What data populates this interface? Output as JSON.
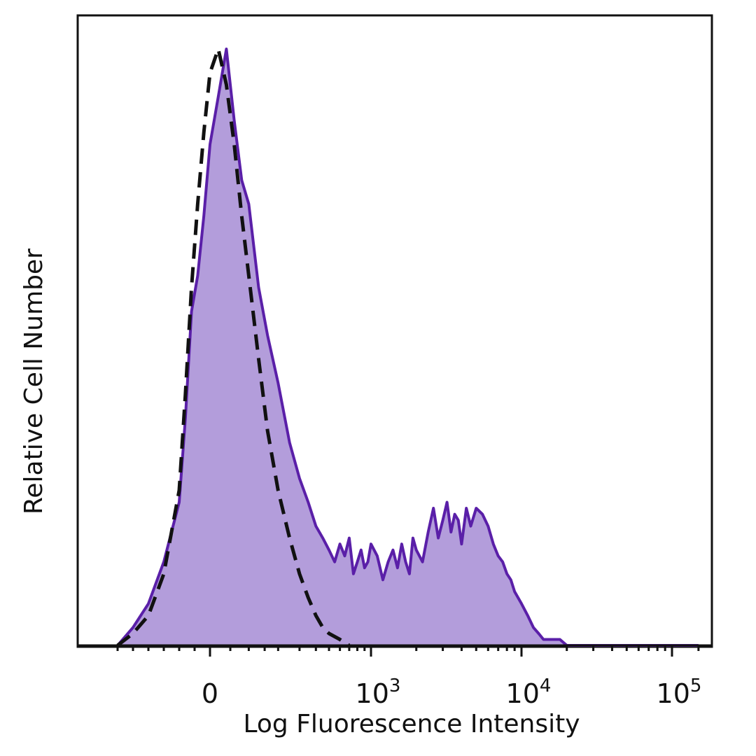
{
  "chart_data": {
    "type": "area",
    "title": "",
    "xlabel": "Log Fluorescence Intensity",
    "ylabel": "Relative Cell Number",
    "x_scale": "biexponential (log)",
    "x_ticks": [
      {
        "value": 0,
        "base": "0",
        "exp": ""
      },
      {
        "value": 1000,
        "base": "10",
        "exp": "3"
      },
      {
        "value": 10000,
        "base": "10",
        "exp": "4"
      },
      {
        "value": 100000,
        "base": "10",
        "exp": "5"
      }
    ],
    "grid": false,
    "legend": "none",
    "series": [
      {
        "style": "filled",
        "color": "#5a1fa8",
        "fill": "#b39ddb",
        "x": [
          -300,
          -250,
          -200,
          -150,
          -100,
          -80,
          -60,
          -40,
          -20,
          0,
          20,
          40,
          60,
          80,
          100,
          130,
          160,
          200,
          250,
          300,
          350,
          400,
          450,
          500,
          550,
          600,
          650,
          700,
          750,
          800,
          850,
          900,
          950,
          1000,
          1100,
          1200,
          1300,
          1400,
          1500,
          1600,
          1700,
          1800,
          1900,
          2000,
          2200,
          2400,
          2600,
          2800,
          3000,
          3200,
          3400,
          3600,
          3800,
          4000,
          4300,
          4600,
          5000,
          5500,
          6000,
          6500,
          7000,
          7500,
          8000,
          8500,
          9000,
          10000,
          11000,
          12000,
          13000,
          14000,
          16000,
          18000,
          20000,
          25000,
          30000,
          50000,
          100000,
          150000
        ],
        "y": [
          0,
          3,
          7,
          14,
          24,
          38,
          56,
          62,
          72,
          84,
          92,
          100,
          88,
          78,
          74,
          60,
          52,
          44,
          34,
          28,
          24,
          20,
          18,
          16,
          14,
          17,
          15,
          18,
          12,
          14,
          16,
          13,
          14,
          17,
          15,
          11,
          14,
          16,
          13,
          17,
          14,
          12,
          18,
          16,
          14,
          19,
          23,
          18,
          21,
          24,
          19,
          22,
          21,
          17,
          23,
          20,
          23,
          22,
          20,
          17,
          15,
          14,
          12,
          11,
          9,
          7,
          5,
          3,
          2,
          1,
          1,
          1,
          0,
          0,
          0,
          0,
          0,
          0
        ]
      },
      {
        "style": "dashed",
        "color": "#111111",
        "x": [
          -300,
          -250,
          -200,
          -150,
          -100,
          -80,
          -60,
          -40,
          -20,
          0,
          20,
          40,
          60,
          80,
          100,
          130,
          160,
          200,
          250,
          300,
          350,
          400,
          450,
          500,
          600,
          700
        ],
        "y": [
          0,
          2,
          5,
          12,
          26,
          42,
          60,
          74,
          86,
          96,
          100,
          94,
          84,
          72,
          62,
          48,
          36,
          26,
          18,
          12,
          8,
          5,
          3,
          2,
          1,
          0
        ]
      }
    ]
  }
}
